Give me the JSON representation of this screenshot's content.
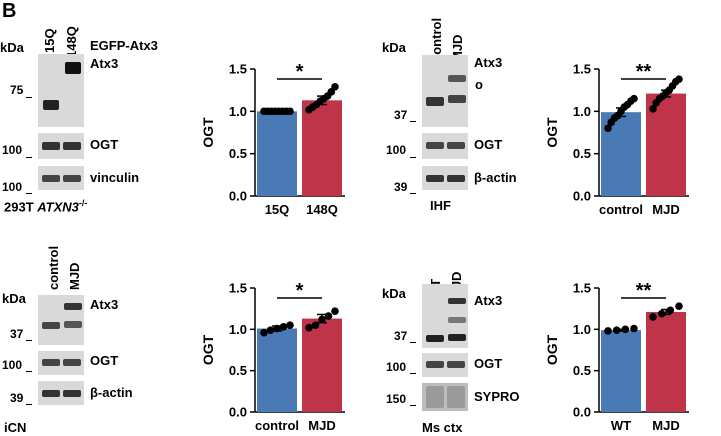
{
  "figure": {
    "panel_letter": "B",
    "blots": [
      {
        "kda_label": "kDa",
        "lanes": [
          "15Q",
          "148Q"
        ],
        "lane_group": "EGFP-Atx3",
        "rows": [
          {
            "label": "Atx3",
            "markers": [
              "75"
            ]
          },
          {
            "label": "OGT",
            "markers": [
              "100"
            ]
          },
          {
            "label": "vinculin",
            "markers": [
              "100"
            ]
          }
        ],
        "footer_prefix": "293T ",
        "footer_italic": "ATXN3",
        "footer_sup": "-/-"
      },
      {
        "kda_label": "kDa",
        "lanes": [
          "control",
          "MJD"
        ],
        "rows": [
          {
            "label": "Atx3",
            "markers": [
              "37"
            ],
            "extra_symbol": "o"
          },
          {
            "label": "OGT",
            "markers": [
              "100"
            ]
          },
          {
            "label": "β-actin",
            "markers": [
              "39"
            ]
          }
        ],
        "footer": "IHF"
      },
      {
        "kda_label": "kDa",
        "lanes": [
          "control",
          "MJD"
        ],
        "rows": [
          {
            "label": "Atx3",
            "markers": [
              "37"
            ]
          },
          {
            "label": "OGT",
            "markers": [
              "100"
            ]
          },
          {
            "label": "β-actin",
            "markers": [
              "39"
            ]
          }
        ],
        "footer": "iCN"
      },
      {
        "kda_label": "kDa",
        "lanes": [
          "WT",
          "MJD"
        ],
        "rows": [
          {
            "label": "Atx3",
            "markers": [
              "37"
            ]
          },
          {
            "label": "OGT",
            "markers": [
              "100"
            ]
          },
          {
            "label": "SYPRO",
            "markers": [
              "150"
            ]
          }
        ],
        "footer": "Ms ctx"
      }
    ],
    "colors": {
      "control_bar": "#4a7ab5",
      "disease_bar": "#c0344a"
    }
  },
  "chart_data": [
    {
      "type": "bar",
      "categories": [
        "15Q",
        "148Q"
      ],
      "values": [
        1.0,
        1.13
      ],
      "errors": [
        0.0,
        0.05
      ],
      "points": [
        [
          1.0,
          1.0,
          1.0,
          1.0,
          1.0,
          1.0,
          1.0,
          1.0
        ],
        [
          1.02,
          1.05,
          1.08,
          1.12,
          1.15,
          1.18,
          1.23,
          1.29
        ]
      ],
      "ylabel": "OGT",
      "ylim": [
        0,
        1.5
      ],
      "yticks": [
        "0.0",
        "0.5",
        "1.0",
        "1.5"
      ],
      "significance": "*"
    },
    {
      "type": "bar",
      "categories": [
        "control",
        "MJD"
      ],
      "values": [
        0.99,
        1.21
      ],
      "errors": [
        0.05,
        0.04
      ],
      "points": [
        [
          0.8,
          0.87,
          0.92,
          0.95,
          1.0,
          1.05,
          1.08,
          1.12,
          1.15
        ],
        [
          1.03,
          1.1,
          1.15,
          1.18,
          1.22,
          1.25,
          1.3,
          1.35,
          1.38
        ]
      ],
      "ylabel": "OGT",
      "ylim": [
        0,
        1.5
      ],
      "yticks": [
        "0.0",
        "0.5",
        "1.0",
        "1.5"
      ],
      "significance": "**"
    },
    {
      "type": "bar",
      "categories": [
        "control",
        "MJD"
      ],
      "values": [
        1.01,
        1.13
      ],
      "errors": [
        0.03,
        0.05
      ],
      "points": [
        [
          0.96,
          0.99,
          1.01,
          1.03,
          1.05
        ],
        [
          1.02,
          1.05,
          1.12,
          1.16,
          1.22
        ]
      ],
      "ylabel": "OGT",
      "ylim": [
        0,
        1.5
      ],
      "yticks": [
        "0.0",
        "0.5",
        "1.0",
        "1.5"
      ],
      "significance": "*"
    },
    {
      "type": "bar",
      "categories": [
        "WT",
        "MJD"
      ],
      "values": [
        0.99,
        1.21
      ],
      "errors": [
        0.01,
        0.03
      ],
      "points": [
        [
          0.98,
          0.99,
          1.0,
          1.01
        ],
        [
          1.15,
          1.19,
          1.23,
          1.28
        ]
      ],
      "ylabel": "OGT",
      "ylim": [
        0,
        1.5
      ],
      "yticks": [
        "0.0",
        "0.5",
        "1.0",
        "1.5"
      ],
      "significance": "**"
    }
  ]
}
